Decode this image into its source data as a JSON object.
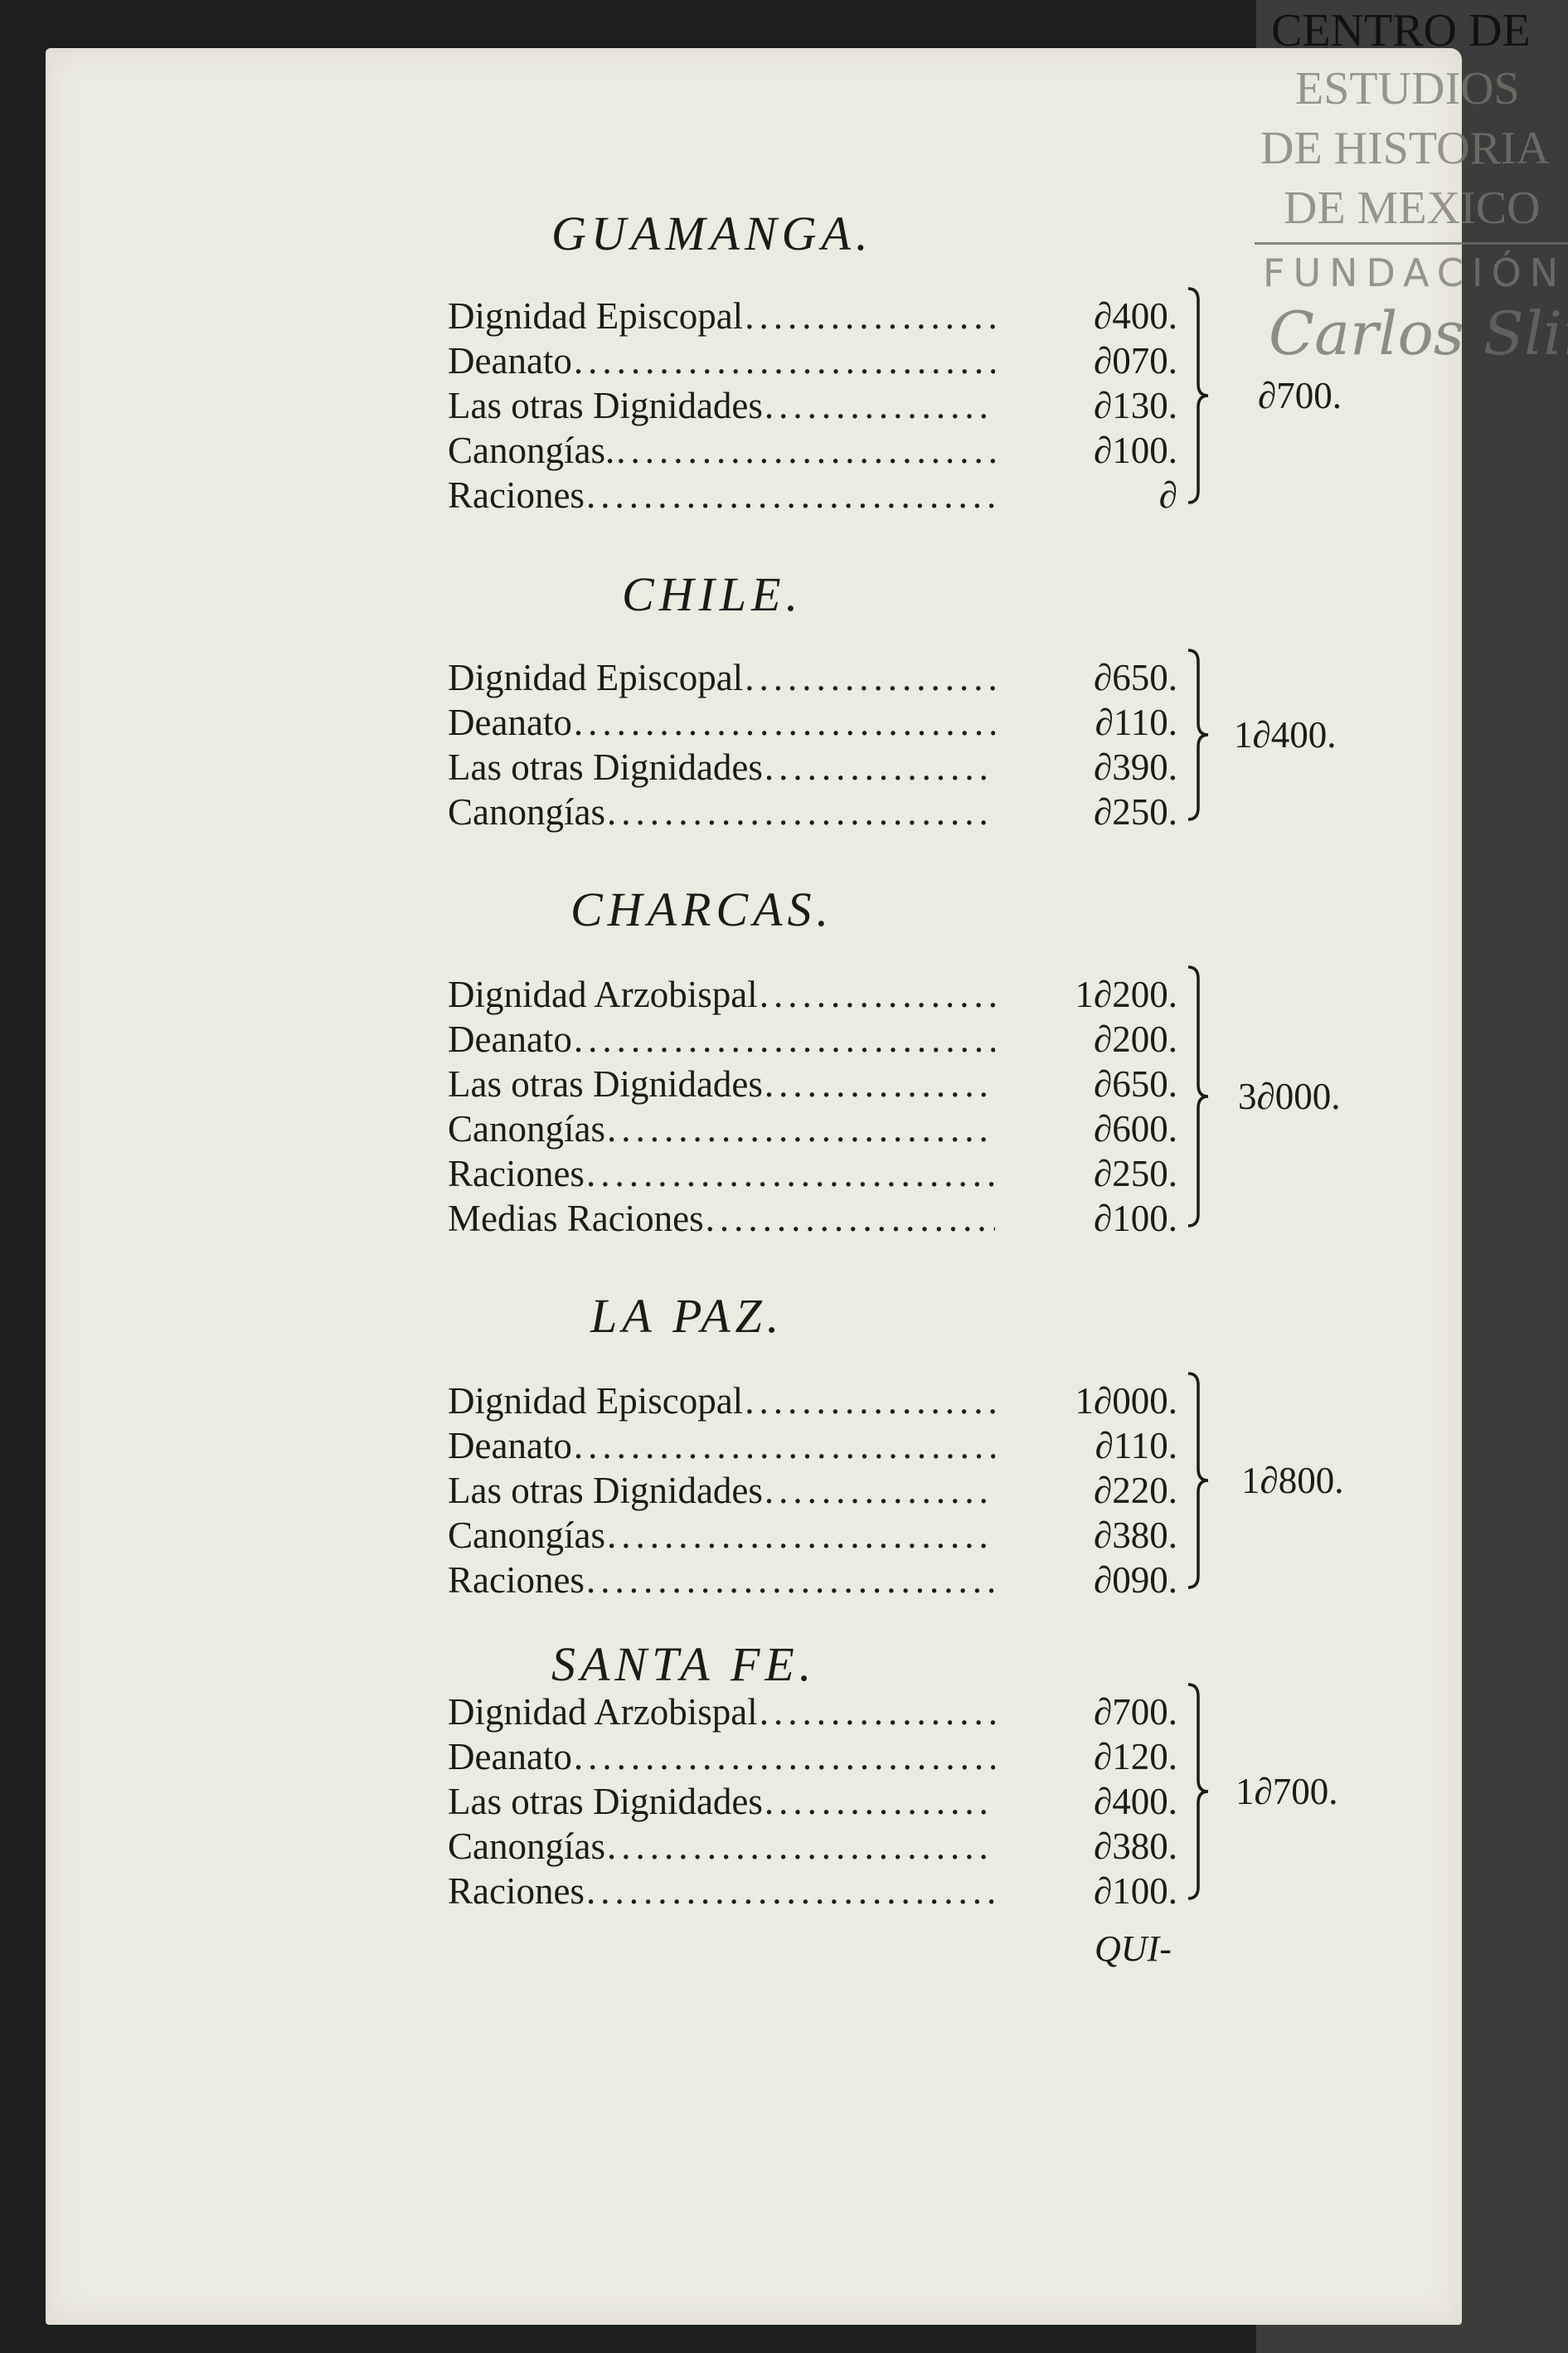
{
  "sections": [
    {
      "title": "GUAMANGA.",
      "rows": [
        {
          "label": "Dignidad Episcopal",
          "amount": "∂400."
        },
        {
          "label": "Deanato",
          "amount": "∂070."
        },
        {
          "label": "Las otras Dignidades",
          "amount": "∂130."
        },
        {
          "label": "Canongías.",
          "amount": "∂100."
        },
        {
          "label": "Raciones",
          "amount": "∂"
        }
      ],
      "total": "∂700."
    },
    {
      "title": "CHILE.",
      "rows": [
        {
          "label": "Dignidad Episcopal",
          "amount": "∂650."
        },
        {
          "label": "Deanato",
          "amount": "∂110."
        },
        {
          "label": "Las otras Dignidades",
          "amount": "∂390."
        },
        {
          "label": "Canongías",
          "amount": "∂250."
        }
      ],
      "total": "1∂400."
    },
    {
      "title": "CHARCAS.",
      "rows": [
        {
          "label": "Dignidad Arzobispal",
          "amount": "1∂200."
        },
        {
          "label": "Deanato",
          "amount": "∂200."
        },
        {
          "label": "Las otras Dignidades",
          "amount": "∂650."
        },
        {
          "label": "Canongías",
          "amount": "∂600."
        },
        {
          "label": "Raciones",
          "amount": "∂250."
        },
        {
          "label": "Medias Raciones",
          "amount": "∂100."
        }
      ],
      "total": "3∂000."
    },
    {
      "title": "LA PAZ.",
      "rows": [
        {
          "label": "Dignidad Episcopal",
          "amount": "1∂000."
        },
        {
          "label": "Deanato",
          "amount": "∂110."
        },
        {
          "label": "Las otras Dignidades",
          "amount": "∂220."
        },
        {
          "label": "Canongías",
          "amount": "∂380."
        },
        {
          "label": "Raciones",
          "amount": "∂090."
        }
      ],
      "total": "1∂800."
    },
    {
      "title": "SANTA FE.",
      "rows": [
        {
          "label": "Dignidad Arzobispal",
          "amount": "∂700."
        },
        {
          "label": "Deanato",
          "amount": "∂120."
        },
        {
          "label": "Las otras Dignidades",
          "amount": "∂400."
        },
        {
          "label": "Canongías",
          "amount": "∂380."
        },
        {
          "label": "Raciones",
          "amount": "∂100."
        }
      ],
      "total": "1∂700."
    }
  ],
  "catchword": "QUI-",
  "watermark": {
    "line1": "CENTRO DE",
    "line2": "ESTUDIOS",
    "line3": "DE HISTORIA",
    "line4": "DE MEXICO",
    "line5": "FUNDACIÓN",
    "signature": "Carlos Slim"
  }
}
